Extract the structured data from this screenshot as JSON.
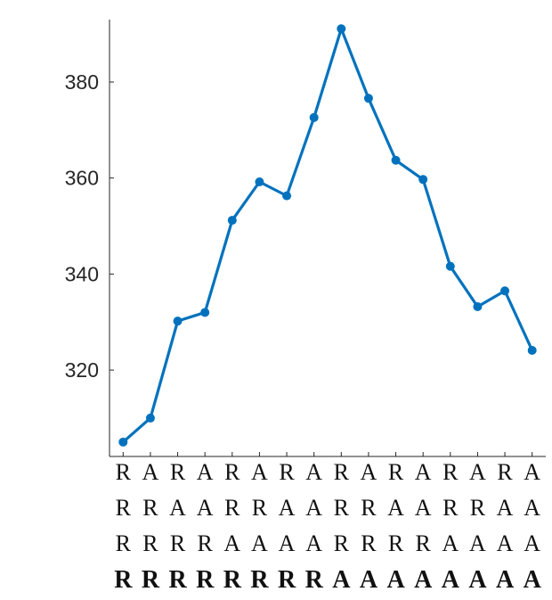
{
  "chart_data": {
    "type": "line",
    "title": "",
    "xlabel": "",
    "ylabel": "",
    "x": [
      1,
      2,
      3,
      4,
      5,
      6,
      7,
      8,
      9,
      10,
      11,
      12,
      13,
      14,
      15,
      16
    ],
    "category_rows": [
      [
        "R",
        "A",
        "R",
        "A",
        "R",
        "A",
        "R",
        "A",
        "R",
        "A",
        "R",
        "A",
        "R",
        "A",
        "R",
        "A"
      ],
      [
        "R",
        "R",
        "A",
        "A",
        "R",
        "R",
        "A",
        "A",
        "R",
        "R",
        "A",
        "A",
        "R",
        "R",
        "A",
        "A"
      ],
      [
        "R",
        "R",
        "R",
        "R",
        "A",
        "A",
        "A",
        "A",
        "R",
        "R",
        "R",
        "R",
        "A",
        "A",
        "A",
        "A"
      ],
      [
        "R",
        "R",
        "R",
        "R",
        "R",
        "R",
        "R",
        "R",
        "A",
        "A",
        "A",
        "A",
        "A",
        "A",
        "A",
        "A"
      ]
    ],
    "series": [
      {
        "values": [
          305,
          310,
          330.2,
          332,
          351.2,
          359.2,
          356.3,
          372.6,
          391.1,
          376.6,
          363.7,
          359.7,
          341.6,
          333.2,
          336.5,
          324.1
        ],
        "color": "#0072BD"
      }
    ],
    "yticks": [
      320,
      340,
      360,
      380
    ],
    "ytick_labels": [
      "320",
      "340",
      "360",
      "380"
    ],
    "ylim": [
      302,
      393
    ],
    "xlim": [
      0.5,
      16.5
    ],
    "grid": false,
    "legend": "none",
    "axis_color": "#262626",
    "text_color": "#262626"
  }
}
